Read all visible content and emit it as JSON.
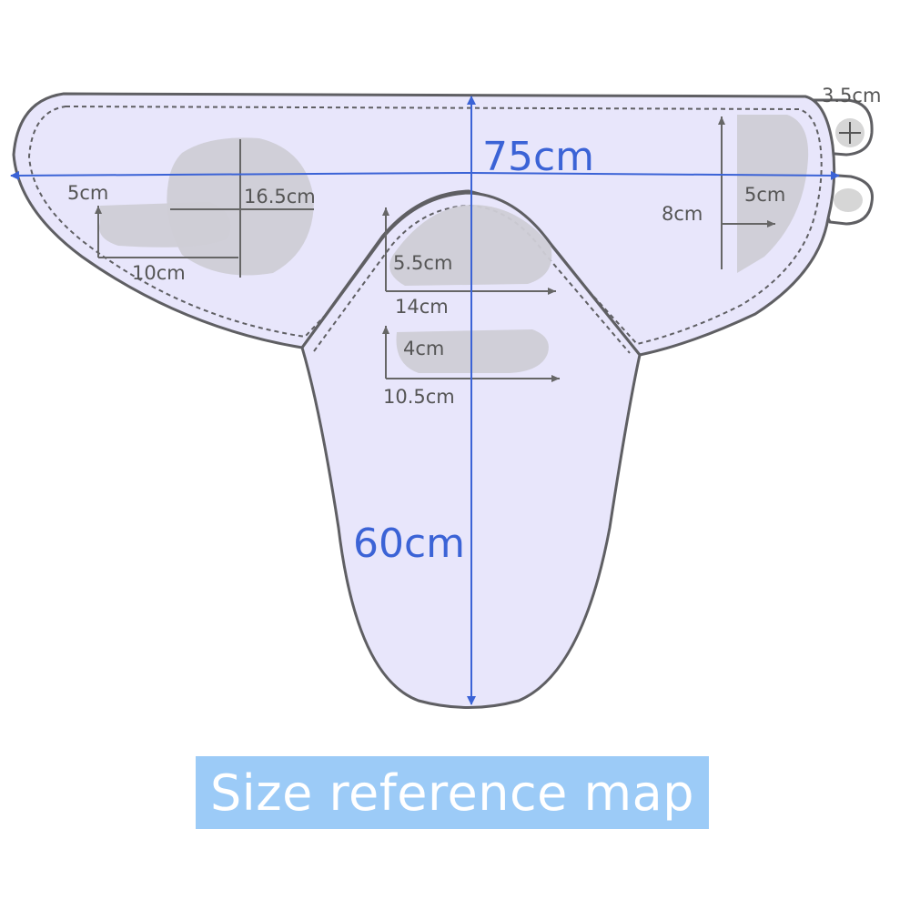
{
  "diagram": {
    "labels": {
      "width_total": "75cm",
      "height_total": "60cm",
      "head_pad_height": "16.5cm",
      "head_pad_short": "5cm",
      "head_pad_width": "10cm",
      "tab_size": "3.5cm",
      "side_pad_height": "8cm",
      "side_pad_width": "5cm",
      "center_pad_height": "5.5cm",
      "center_pad_width": "14cm",
      "lower_pad_height": "4cm",
      "lower_pad_width": "10.5cm"
    },
    "caption": "Size reference map"
  },
  "colors": {
    "fabric": "#e8e6fb",
    "outline": "#5f5f63",
    "pad": "#cfced6",
    "dimension_blue": "#3b63d6",
    "caption_bg": "#9ccbf7",
    "caption_text": "#ffffff"
  }
}
